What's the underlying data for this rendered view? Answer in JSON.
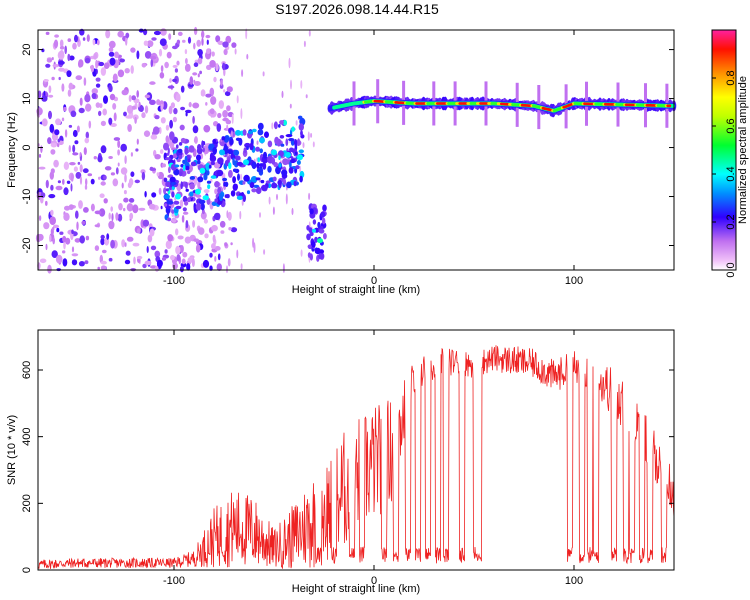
{
  "figure": {
    "title": "S197.2026.098.14.44.R15"
  },
  "chart_data": [
    {
      "type": "heatmap",
      "title": "S197.2026.098.14.44.R15",
      "xlabel": "Height of straight line (km)",
      "ylabel": "Frequency (Hz)",
      "xlim": [
        -168,
        150
      ],
      "ylim": [
        -25,
        24
      ],
      "xticks": [
        -100,
        0,
        100
      ],
      "yticks": [
        -20,
        -10,
        0,
        10,
        20
      ],
      "colorbar": {
        "label": "Normalized spectral amplitude",
        "range": [
          0,
          1
        ],
        "ticks": [
          0.0,
          0.2,
          0.4,
          0.6,
          0.8
        ],
        "tick_labels": [
          "0.0",
          "0.2",
          "0.4",
          "0.6",
          "0.8"
        ]
      },
      "features": [
        {
          "name": "noise-cloud",
          "x_range": [
            -168,
            -70
          ],
          "freq_range": [
            -25,
            24
          ]
        },
        {
          "name": "scattered-band",
          "x_range": [
            -105,
            -35
          ],
          "freq_range": [
            -15,
            5
          ]
        },
        {
          "name": "low-burst",
          "x_range": [
            -33,
            -24
          ],
          "freq_range": [
            -23,
            -12
          ]
        },
        {
          "name": "main-track",
          "x_range": [
            -22,
            150
          ],
          "center_freq": [
            {
              "x": -22,
              "f": 8
            },
            {
              "x": -10,
              "f": 9
            },
            {
              "x": 0,
              "f": 9.5
            },
            {
              "x": 20,
              "f": 9
            },
            {
              "x": 60,
              "f": 9
            },
            {
              "x": 80,
              "f": 8.5
            },
            {
              "x": 90,
              "f": 7.5
            },
            {
              "x": 100,
              "f": 9
            },
            {
              "x": 150,
              "f": 8.5
            }
          ]
        }
      ]
    },
    {
      "type": "line",
      "xlabel": "Height of straight line (km)",
      "ylabel": "SNR (10 * v/v)",
      "xlim": [
        -168,
        150
      ],
      "ylim": [
        0,
        720
      ],
      "xticks": [
        -100,
        0,
        100
      ],
      "yticks": [
        0,
        200,
        400,
        600
      ],
      "series": [
        {
          "name": "SNR",
          "color": "#ee2222",
          "envelope": {
            "x": [
              -168,
              -150,
              -120,
              -100,
              -90,
              -80,
              -70,
              -60,
              -50,
              -40,
              -30,
              -20,
              -10,
              0,
              10,
              20,
              30,
              40,
              50,
              60,
              70,
              80,
              90,
              100,
              110,
              120,
              130,
              140,
              150
            ],
            "base": [
              10,
              15,
              15,
              15,
              25,
              60,
              80,
              70,
              40,
              60,
              90,
              130,
              200,
              250,
              300,
              560,
              600,
              610,
              600,
              620,
              610,
              600,
              560,
              590,
              560,
              500,
              420,
              320,
              200
            ],
            "amp": [
              30,
              30,
              30,
              30,
              50,
              180,
              240,
              220,
              120,
              200,
              300,
              350,
              380,
              350,
              320,
              100,
              90,
              80,
              80,
              80,
              90,
              90,
              100,
              100,
              120,
              150,
              150,
              150,
              150
            ]
          },
          "dropouts": [
            -28,
            -20,
            -11,
            -6,
            5,
            11,
            17,
            22,
            27,
            32,
            36,
            44,
            51,
            98,
            104,
            108,
            111,
            120,
            126,
            129,
            134,
            138,
            145
          ]
        }
      ]
    }
  ]
}
